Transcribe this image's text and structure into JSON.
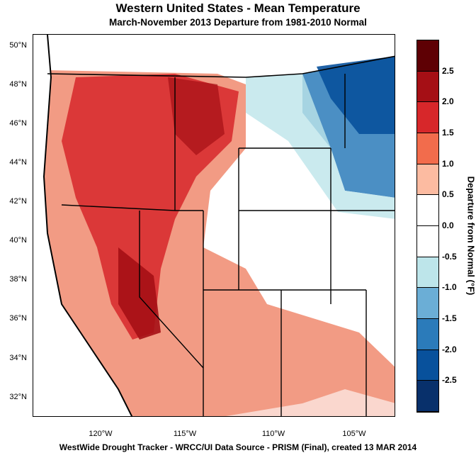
{
  "header": {
    "title": "Western United States - Mean Temperature",
    "subtitle": "March-November 2013  Departure from 1981-2010 Normal"
  },
  "axes": {
    "lat_labels": [
      "50°N",
      "48°N",
      "46°N",
      "44°N",
      "42°N",
      "40°N",
      "38°N",
      "36°N",
      "34°N",
      "32°N"
    ],
    "lon_labels": [
      "120°W",
      "115°W",
      "110°W",
      "105°W"
    ]
  },
  "colorbar": {
    "title": "Departure from Normal (°F)",
    "labels": [
      "2.5",
      "2.0",
      "1.5",
      "1.0",
      "0.5",
      "0.0",
      "-0.5",
      "-1.0",
      "-1.5",
      "-2.0",
      "-2.5"
    ],
    "colors": [
      "#5e0004",
      "#a50f15",
      "#d7272a",
      "#f26c4c",
      "#fcbba1",
      "#ffffff",
      "#ffffff",
      "#bde5ea",
      "#6baed6",
      "#2b7bba",
      "#08519c",
      "#08306b"
    ]
  },
  "footer": "WestWide Drought Tracker - WRCC/UI  Data Source - PRISM (Final), created 13 MAR 2014"
}
